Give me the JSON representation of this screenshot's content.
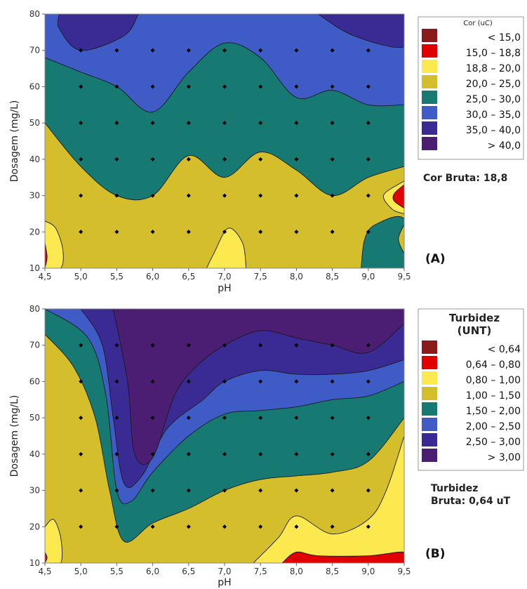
{
  "palette": {
    "lt": "#8B1A1A",
    "c2": "#E00000",
    "c3": "#FCE94F",
    "c4": "#D4BE2C",
    "c5": "#167A73",
    "c6": "#3F5CC6",
    "c7": "#3A2B94",
    "c8": "#4C1E73"
  },
  "chart_data": [
    {
      "type": "contour",
      "panel_label": "(A)",
      "xlabel": "pH",
      "ylabel": "Dosagem (mg/L)",
      "xlim": [
        4.5,
        9.5
      ],
      "ylim": [
        10,
        80
      ],
      "x_ticks": [
        "4,5",
        "5,0",
        "5,5",
        "6,0",
        "6,5",
        "7,0",
        "7,5",
        "8,0",
        "8,5",
        "9,0",
        "9,5"
      ],
      "y_ticks": [
        "10",
        "20",
        "30",
        "40",
        "50",
        "60",
        "70",
        "80"
      ],
      "legend_title": "Cor (uC)",
      "legend": [
        {
          "label": "< 15,0",
          "color": "#8B1A1A"
        },
        {
          "label": "15,0 – 18,8",
          "color": "#E00000"
        },
        {
          "label": "18,8 – 20,0",
          "color": "#FCE94F"
        },
        {
          "label": "20,0 – 25,0",
          "color": "#D4BE2C"
        },
        {
          "label": "25,0 – 30,0",
          "color": "#167A73"
        },
        {
          "label": "30,0 – 35,0",
          "color": "#3F5CC6"
        },
        {
          "label": "35,0 – 40,0",
          "color": "#3A2B94"
        },
        {
          "label": "> 40,0",
          "color": "#4C1E73"
        }
      ],
      "note": "Cor Bruta: 18,8",
      "grid_points": {
        "x": [
          4.5,
          5.0,
          5.5,
          6.0,
          6.5,
          7.0,
          7.5,
          8.0,
          8.5,
          9.0,
          9.5
        ],
        "y": [
          10,
          20,
          30,
          40,
          50,
          60,
          70,
          80
        ]
      },
      "boundaries": {
        "b20": [
          [
            4.5,
            50
          ],
          [
            5.0,
            38
          ],
          [
            5.5,
            30
          ],
          [
            6.0,
            30
          ],
          [
            6.5,
            41
          ],
          [
            7.0,
            35
          ],
          [
            7.5,
            42
          ],
          [
            8.0,
            37
          ],
          [
            8.5,
            30
          ],
          [
            9.0,
            35
          ],
          [
            9.5,
            38
          ]
        ],
        "b25": [
          [
            4.5,
            68
          ],
          [
            5.0,
            64
          ],
          [
            5.5,
            60
          ],
          [
            6.0,
            53
          ],
          [
            6.5,
            64
          ],
          [
            7.0,
            72
          ],
          [
            7.5,
            68
          ],
          [
            8.0,
            57
          ],
          [
            8.5,
            59
          ],
          [
            9.0,
            55
          ],
          [
            9.5,
            55
          ]
        ],
        "b30": [
          [
            5.8,
            80
          ],
          [
            5.6,
            74
          ],
          [
            5.0,
            70
          ],
          [
            4.7,
            76
          ],
          [
            4.7,
            80
          ]
        ],
        "b35": [
          [
            8.3,
            80
          ],
          [
            8.8,
            74
          ],
          [
            9.5,
            71
          ],
          [
            9.5,
            80
          ]
        ]
      }
    },
    {
      "type": "contour",
      "panel_label": "(B)",
      "xlabel": "pH",
      "ylabel": "Dosagem (mg/L)",
      "xlim": [
        4.5,
        9.5
      ],
      "ylim": [
        10,
        80
      ],
      "x_ticks": [
        "4,5",
        "5,0",
        "5,5",
        "6,0",
        "6,5",
        "7,0",
        "7,5",
        "8,0",
        "8,5",
        "9,0",
        "9,5"
      ],
      "y_ticks": [
        "10",
        "20",
        "30",
        "40",
        "50",
        "60",
        "70",
        "80"
      ],
      "legend_title": [
        "Turbidez",
        "(UNT)"
      ],
      "legend": [
        {
          "label": "< 0,64",
          "color": "#8B1A1A"
        },
        {
          "label": "0,64 – 0,80",
          "color": "#E00000"
        },
        {
          "label": "0,80 – 1,00",
          "color": "#FCE94F"
        },
        {
          "label": "1,00 – 1,50",
          "color": "#D4BE2C"
        },
        {
          "label": "1,50 – 2,00",
          "color": "#167A73"
        },
        {
          "label": "2,00 – 2,50",
          "color": "#3F5CC6"
        },
        {
          "label": "2,50 – 3,00",
          "color": "#3A2B94"
        },
        {
          "label": "> 3,00",
          "color": "#4C1E73"
        }
      ],
      "note": [
        "Turbidez",
        "Bruta: 0,64 uT"
      ],
      "grid_points": {
        "x": [
          4.5,
          5.0,
          5.5,
          6.0,
          6.5,
          7.0,
          7.5,
          8.0,
          8.5,
          9.0,
          9.5
        ],
        "y": [
          10,
          20,
          30,
          40,
          50,
          60,
          70,
          80
        ]
      },
      "boundaries": {
        "c15": [
          [
            4.5,
            73
          ],
          [
            4.9,
            64
          ],
          [
            5.2,
            50
          ],
          [
            5.4,
            30
          ],
          [
            5.6,
            16
          ],
          [
            6.0,
            21
          ],
          [
            6.5,
            25
          ],
          [
            7.0,
            30
          ],
          [
            7.5,
            33
          ],
          [
            8.0,
            34
          ],
          [
            8.5,
            35
          ],
          [
            9.0,
            38
          ],
          [
            9.5,
            50
          ]
        ],
        "c20": [
          [
            4.5,
            80
          ],
          [
            5.1,
            72
          ],
          [
            5.35,
            56
          ],
          [
            5.5,
            30
          ],
          [
            5.7,
            27
          ],
          [
            6.0,
            35
          ],
          [
            6.5,
            45
          ],
          [
            7.0,
            51
          ],
          [
            7.5,
            52
          ],
          [
            8.0,
            53
          ],
          [
            8.5,
            55
          ],
          [
            9.0,
            56
          ],
          [
            9.5,
            60
          ]
        ],
        "c25": [
          [
            5.0,
            80
          ],
          [
            5.3,
            70
          ],
          [
            5.45,
            50
          ],
          [
            5.6,
            32
          ],
          [
            5.85,
            34
          ],
          [
            6.2,
            47
          ],
          [
            6.7,
            55
          ],
          [
            7.0,
            60
          ],
          [
            7.5,
            63
          ],
          [
            8.0,
            62
          ],
          [
            8.5,
            62
          ],
          [
            9.0,
            63
          ],
          [
            9.5,
            66
          ]
        ],
        "c30": [
          [
            5.45,
            80
          ],
          [
            5.65,
            60
          ],
          [
            5.75,
            40
          ],
          [
            6.0,
            39
          ],
          [
            6.3,
            56
          ],
          [
            6.6,
            64
          ],
          [
            7.0,
            70
          ],
          [
            7.5,
            74
          ],
          [
            8.0,
            72
          ],
          [
            8.5,
            70
          ],
          [
            9.0,
            68
          ],
          [
            9.5,
            76
          ]
        ],
        "c10": [
          [
            7.4,
            10
          ],
          [
            7.75,
            17
          ],
          [
            8.0,
            23
          ],
          [
            8.5,
            18
          ],
          [
            9.0,
            22
          ],
          [
            9.25,
            30
          ],
          [
            9.5,
            45
          ]
        ],
        "c08": [
          [
            7.8,
            10
          ],
          [
            8.0,
            13
          ],
          [
            8.3,
            12
          ],
          [
            9.0,
            12
          ],
          [
            9.5,
            13
          ],
          [
            9.5,
            10
          ]
        ]
      }
    }
  ]
}
